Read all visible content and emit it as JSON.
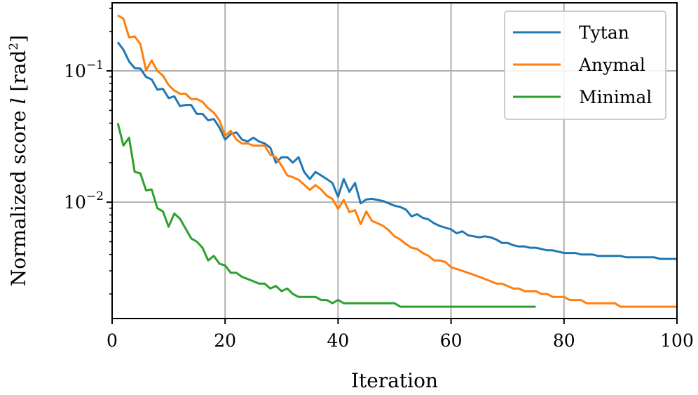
{
  "chart_data": {
    "type": "line",
    "xlabel": "Iteration",
    "ylabel_main": "Normalized score ",
    "ylabel_var": "l",
    "ylabel_unit_open": " [rad",
    "ylabel_unit_sup": "2",
    "ylabel_unit_close": "]",
    "xlim": [
      0,
      100
    ],
    "ylim": [
      0.0013,
      0.33
    ],
    "yscale": "log",
    "grid": true,
    "legend_position": "top-right",
    "x_ticks": [
      0,
      20,
      40,
      60,
      80,
      100
    ],
    "y_ticks": [
      {
        "value": 0.1,
        "base": "10",
        "exp": "−1"
      },
      {
        "value": 0.01,
        "base": "10",
        "exp": "−2"
      }
    ],
    "series": [
      {
        "name": "Tytan",
        "color": "#1f77b4",
        "points": [
          [
            1,
            0.165
          ],
          [
            2,
            0.145
          ],
          [
            3,
            0.118
          ],
          [
            4,
            0.105
          ],
          [
            5,
            0.104
          ],
          [
            6,
            0.09
          ],
          [
            7,
            0.086
          ],
          [
            8,
            0.072
          ],
          [
            9,
            0.073
          ],
          [
            10,
            0.062
          ],
          [
            11,
            0.064
          ],
          [
            12,
            0.054
          ],
          [
            13,
            0.055
          ],
          [
            14,
            0.055
          ],
          [
            15,
            0.047
          ],
          [
            16,
            0.047
          ],
          [
            17,
            0.042
          ],
          [
            18,
            0.043
          ],
          [
            19,
            0.037
          ],
          [
            20,
            0.03
          ],
          [
            21,
            0.033
          ],
          [
            22,
            0.034
          ],
          [
            23,
            0.03
          ],
          [
            24,
            0.029
          ],
          [
            25,
            0.031
          ],
          [
            26,
            0.029
          ],
          [
            27,
            0.028
          ],
          [
            28,
            0.026
          ],
          [
            29,
            0.02
          ],
          [
            30,
            0.022
          ],
          [
            31,
            0.022
          ],
          [
            32,
            0.02
          ],
          [
            33,
            0.022
          ],
          [
            34,
            0.017
          ],
          [
            35,
            0.015
          ],
          [
            36,
            0.017
          ],
          [
            37,
            0.016
          ],
          [
            38,
            0.015
          ],
          [
            39,
            0.014
          ],
          [
            40,
            0.011
          ],
          [
            41,
            0.015
          ],
          [
            42,
            0.012
          ],
          [
            43,
            0.014
          ],
          [
            44,
            0.0098
          ],
          [
            45,
            0.0105
          ],
          [
            46,
            0.0106
          ],
          [
            47,
            0.0104
          ],
          [
            48,
            0.0102
          ],
          [
            49,
            0.0098
          ],
          [
            50,
            0.0094
          ],
          [
            51,
            0.0092
          ],
          [
            52,
            0.0088
          ],
          [
            53,
            0.0078
          ],
          [
            54,
            0.0081
          ],
          [
            55,
            0.0076
          ],
          [
            56,
            0.0074
          ],
          [
            57,
            0.0069
          ],
          [
            58,
            0.0066
          ],
          [
            59,
            0.0064
          ],
          [
            60,
            0.0062
          ],
          [
            61,
            0.0058
          ],
          [
            62,
            0.006
          ],
          [
            63,
            0.0056
          ],
          [
            64,
            0.0055
          ],
          [
            65,
            0.0054
          ],
          [
            66,
            0.0055
          ],
          [
            67,
            0.0054
          ],
          [
            68,
            0.0052
          ],
          [
            69,
            0.0049
          ],
          [
            70,
            0.0049
          ],
          [
            71,
            0.0047
          ],
          [
            72,
            0.0046
          ],
          [
            73,
            0.0046
          ],
          [
            74,
            0.0045
          ],
          [
            75,
            0.0045
          ],
          [
            76,
            0.0044
          ],
          [
            77,
            0.0043
          ],
          [
            78,
            0.0043
          ],
          [
            79,
            0.0042
          ],
          [
            80,
            0.0041
          ],
          [
            81,
            0.0041
          ],
          [
            82,
            0.0041
          ],
          [
            83,
            0.004
          ],
          [
            84,
            0.004
          ],
          [
            85,
            0.004
          ],
          [
            86,
            0.0039
          ],
          [
            87,
            0.0039
          ],
          [
            88,
            0.0039
          ],
          [
            89,
            0.0039
          ],
          [
            90,
            0.0039
          ],
          [
            91,
            0.0038
          ],
          [
            92,
            0.0038
          ],
          [
            93,
            0.0038
          ],
          [
            94,
            0.0038
          ],
          [
            95,
            0.0038
          ],
          [
            96,
            0.0038
          ],
          [
            97,
            0.0037
          ],
          [
            98,
            0.0037
          ],
          [
            99,
            0.0037
          ],
          [
            100,
            0.0037
          ]
        ]
      },
      {
        "name": "Anymal",
        "color": "#ff7f0e",
        "points": [
          [
            1,
            0.265
          ],
          [
            2,
            0.25
          ],
          [
            3,
            0.18
          ],
          [
            4,
            0.183
          ],
          [
            5,
            0.16
          ],
          [
            6,
            0.101
          ],
          [
            7,
            0.12
          ],
          [
            8,
            0.1
          ],
          [
            9,
            0.092
          ],
          [
            10,
            0.078
          ],
          [
            11,
            0.071
          ],
          [
            12,
            0.067
          ],
          [
            13,
            0.067
          ],
          [
            14,
            0.061
          ],
          [
            15,
            0.061
          ],
          [
            16,
            0.058
          ],
          [
            17,
            0.052
          ],
          [
            18,
            0.048
          ],
          [
            19,
            0.042
          ],
          [
            20,
            0.032
          ],
          [
            21,
            0.035
          ],
          [
            22,
            0.03
          ],
          [
            23,
            0.028
          ],
          [
            24,
            0.028
          ],
          [
            25,
            0.027
          ],
          [
            26,
            0.027
          ],
          [
            27,
            0.027
          ],
          [
            28,
            0.023
          ],
          [
            29,
            0.022
          ],
          [
            30,
            0.019
          ],
          [
            31,
            0.016
          ],
          [
            32,
            0.0155
          ],
          [
            33,
            0.0148
          ],
          [
            34,
            0.0136
          ],
          [
            35,
            0.0124
          ],
          [
            36,
            0.0135
          ],
          [
            37,
            0.0125
          ],
          [
            38,
            0.0112
          ],
          [
            39,
            0.0106
          ],
          [
            40,
            0.0089
          ],
          [
            41,
            0.0104
          ],
          [
            42,
            0.0084
          ],
          [
            43,
            0.0087
          ],
          [
            44,
            0.0068
          ],
          [
            45,
            0.0085
          ],
          [
            46,
            0.0072
          ],
          [
            47,
            0.0069
          ],
          [
            48,
            0.0066
          ],
          [
            49,
            0.0061
          ],
          [
            50,
            0.0055
          ],
          [
            51,
            0.0052
          ],
          [
            52,
            0.0048
          ],
          [
            53,
            0.0045
          ],
          [
            54,
            0.0044
          ],
          [
            55,
            0.0041
          ],
          [
            56,
            0.0039
          ],
          [
            57,
            0.0036
          ],
          [
            58,
            0.0036
          ],
          [
            59,
            0.0035
          ],
          [
            60,
            0.0032
          ],
          [
            61,
            0.0031
          ],
          [
            62,
            0.003
          ],
          [
            63,
            0.0029
          ],
          [
            64,
            0.0028
          ],
          [
            65,
            0.0027
          ],
          [
            66,
            0.0026
          ],
          [
            67,
            0.0025
          ],
          [
            68,
            0.0024
          ],
          [
            69,
            0.0024
          ],
          [
            70,
            0.0023
          ],
          [
            71,
            0.0022
          ],
          [
            72,
            0.0022
          ],
          [
            73,
            0.0021
          ],
          [
            74,
            0.0021
          ],
          [
            75,
            0.0021
          ],
          [
            76,
            0.002
          ],
          [
            77,
            0.002
          ],
          [
            78,
            0.0019
          ],
          [
            79,
            0.0019
          ],
          [
            80,
            0.0019
          ],
          [
            81,
            0.0018
          ],
          [
            82,
            0.0018
          ],
          [
            83,
            0.0018
          ],
          [
            84,
            0.0017
          ],
          [
            85,
            0.0017
          ],
          [
            86,
            0.0017
          ],
          [
            87,
            0.0017
          ],
          [
            88,
            0.0017
          ],
          [
            89,
            0.0017
          ],
          [
            90,
            0.0016
          ],
          [
            91,
            0.0016
          ],
          [
            92,
            0.0016
          ],
          [
            93,
            0.0016
          ],
          [
            94,
            0.0016
          ],
          [
            95,
            0.0016
          ],
          [
            96,
            0.0016
          ],
          [
            97,
            0.0016
          ],
          [
            98,
            0.0016
          ],
          [
            99,
            0.0016
          ],
          [
            100,
            0.0016
          ]
        ]
      },
      {
        "name": "Minimal",
        "color": "#2ca02c",
        "points": [
          [
            1,
            0.04
          ],
          [
            2,
            0.027
          ],
          [
            3,
            0.031
          ],
          [
            4,
            0.017
          ],
          [
            5,
            0.0166
          ],
          [
            6,
            0.0123
          ],
          [
            7,
            0.0125
          ],
          [
            8,
            0.009
          ],
          [
            9,
            0.0085
          ],
          [
            10,
            0.0065
          ],
          [
            11,
            0.0082
          ],
          [
            12,
            0.0075
          ],
          [
            13,
            0.0063
          ],
          [
            14,
            0.0053
          ],
          [
            15,
            0.005
          ],
          [
            16,
            0.0045
          ],
          [
            17,
            0.0036
          ],
          [
            18,
            0.0039
          ],
          [
            19,
            0.0034
          ],
          [
            20,
            0.0033
          ],
          [
            21,
            0.0029
          ],
          [
            22,
            0.0029
          ],
          [
            23,
            0.0027
          ],
          [
            24,
            0.0026
          ],
          [
            25,
            0.0025
          ],
          [
            26,
            0.0024
          ],
          [
            27,
            0.0024
          ],
          [
            28,
            0.0022
          ],
          [
            29,
            0.0023
          ],
          [
            30,
            0.0021
          ],
          [
            31,
            0.0022
          ],
          [
            32,
            0.002
          ],
          [
            33,
            0.0019
          ],
          [
            34,
            0.0019
          ],
          [
            35,
            0.0019
          ],
          [
            36,
            0.0019
          ],
          [
            37,
            0.0018
          ],
          [
            38,
            0.0018
          ],
          [
            39,
            0.0017
          ],
          [
            40,
            0.0018
          ],
          [
            41,
            0.0017
          ],
          [
            42,
            0.0017
          ],
          [
            43,
            0.0017
          ],
          [
            44,
            0.0017
          ],
          [
            45,
            0.0017
          ],
          [
            46,
            0.0017
          ],
          [
            47,
            0.0017
          ],
          [
            48,
            0.0017
          ],
          [
            49,
            0.0017
          ],
          [
            50,
            0.0017
          ],
          [
            51,
            0.0016
          ],
          [
            52,
            0.0016
          ],
          [
            53,
            0.0016
          ],
          [
            54,
            0.0016
          ],
          [
            55,
            0.0016
          ],
          [
            56,
            0.0016
          ],
          [
            57,
            0.0016
          ],
          [
            58,
            0.0016
          ],
          [
            59,
            0.0016
          ],
          [
            60,
            0.0016
          ],
          [
            61,
            0.0016
          ],
          [
            62,
            0.0016
          ],
          [
            63,
            0.0016
          ],
          [
            64,
            0.0016
          ],
          [
            65,
            0.0016
          ],
          [
            66,
            0.0016
          ],
          [
            67,
            0.0016
          ],
          [
            68,
            0.0016
          ],
          [
            69,
            0.0016
          ],
          [
            70,
            0.0016
          ],
          [
            71,
            0.0016
          ],
          [
            72,
            0.0016
          ],
          [
            73,
            0.0016
          ],
          [
            74,
            0.0016
          ],
          [
            75,
            0.0016
          ]
        ]
      }
    ]
  }
}
